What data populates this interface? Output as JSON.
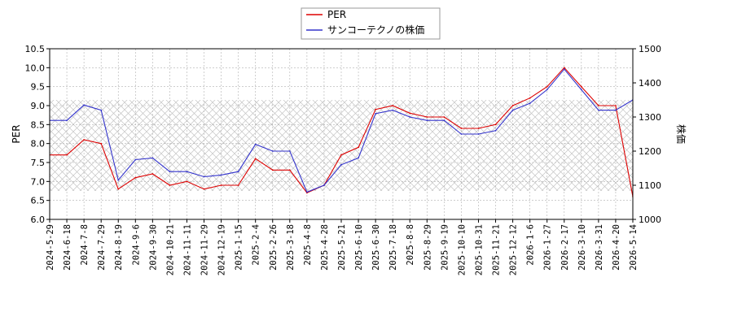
{
  "chart_data": {
    "type": "line",
    "x_dates": [
      "2024-5-29",
      "2024-6-18",
      "2024-7-8",
      "2024-7-29",
      "2024-8-19",
      "2024-9-6",
      "2024-9-30",
      "2024-10-21",
      "2024-11-11",
      "2024-11-29",
      "2024-12-19",
      "2025-1-15",
      "2025-2-4",
      "2025-2-26",
      "2025-3-18",
      "2025-4-8",
      "2025-4-28",
      "2025-5-21",
      "2025-6-10",
      "2025-6-30",
      "2025-7-18",
      "2025-8-8",
      "2025-8-29",
      "2025-9-19",
      "2025-10-10",
      "2025-10-31",
      "2025-11-21",
      "2025-12-12",
      "2026-1-6",
      "2026-1-27",
      "2026-2-17",
      "2026-3-10",
      "2026-3-31",
      "2026-4-20",
      "2026-5-14"
    ],
    "ylabel_left": "PER",
    "ylabel_right": "株価",
    "ylim_left": [
      6.0,
      10.5
    ],
    "ylim_right": [
      1000,
      1500
    ],
    "yticks_left": [
      "6.0",
      "6.5",
      "7.0",
      "7.5",
      "8.0",
      "8.5",
      "9.0",
      "9.5",
      "10.0",
      "10.5"
    ],
    "yticks_right": [
      "1000",
      "1100",
      "1200",
      "1300",
      "1400",
      "1500"
    ],
    "legend_position": "top-center",
    "grid": true,
    "series": [
      {
        "name": "PER",
        "color": "#dd0000",
        "axis": "left",
        "values": [
          7.7,
          7.7,
          8.1,
          8.0,
          6.8,
          7.1,
          7.2,
          6.9,
          7.0,
          6.8,
          6.9,
          6.9,
          7.6,
          7.3,
          7.3,
          6.7,
          6.9,
          7.7,
          7.9,
          8.9,
          9.0,
          8.8,
          8.7,
          8.7,
          8.4,
          8.4,
          8.5,
          9.0,
          9.2,
          9.5,
          10.0,
          9.5,
          9.0,
          9.0,
          6.6
        ]
      },
      {
        "name": "サンコーテクノの株価",
        "color": "#3333cc",
        "axis": "right",
        "values": [
          1290,
          1290,
          1335,
          1320,
          1115,
          1175,
          1180,
          1140,
          1140,
          1125,
          1130,
          1140,
          1220,
          1200,
          1200,
          1080,
          1100,
          1160,
          1180,
          1310,
          1320,
          1300,
          1290,
          1290,
          1250,
          1250,
          1260,
          1320,
          1340,
          1380,
          1440,
          1380,
          1320,
          1320,
          1350
        ]
      }
    ]
  }
}
